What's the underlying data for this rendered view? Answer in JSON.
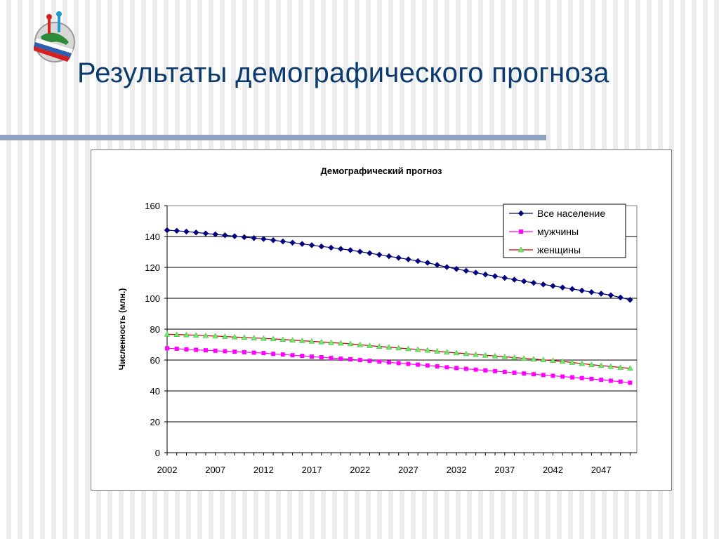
{
  "slide": {
    "title": "Результаты демографического прогноза"
  },
  "logo": {
    "icon": "globe-flag-logo-icon"
  },
  "colors": {
    "title": "#0b3a6e",
    "divider": "#8fa3c0",
    "total": "#00007f",
    "men": "#ff00ff",
    "women_line": "#cc0000",
    "women_marker": "#66ee66"
  },
  "chart_data": {
    "type": "line",
    "title": "Демографический прогноз",
    "xlabel": "",
    "ylabel": "Численность (млн.)",
    "x": [
      2002,
      2003,
      2004,
      2005,
      2006,
      2007,
      2008,
      2009,
      2010,
      2011,
      2012,
      2013,
      2014,
      2015,
      2016,
      2017,
      2018,
      2019,
      2020,
      2021,
      2022,
      2023,
      2024,
      2025,
      2026,
      2027,
      2028,
      2029,
      2030,
      2031,
      2032,
      2033,
      2034,
      2035,
      2036,
      2037,
      2038,
      2039,
      2040,
      2041,
      2042,
      2043,
      2044,
      2045,
      2046,
      2047,
      2048,
      2049,
      2050
    ],
    "xticks": [
      "2002",
      "2007",
      "2012",
      "2017",
      "2022",
      "2027",
      "2032",
      "2037",
      "2042",
      "2047"
    ],
    "yticks": [
      "0",
      "20",
      "40",
      "60",
      "80",
      "100",
      "120",
      "140",
      "160"
    ],
    "ylim": [
      0,
      160
    ],
    "grid": "horizontal",
    "legend_position": "top-right",
    "series": [
      {
        "name": "Все население",
        "marker": "diamond",
        "values": [
          144.1,
          143.7,
          143.2,
          142.6,
          142.0,
          141.4,
          140.8,
          140.2,
          139.6,
          139.0,
          138.4,
          137.6,
          136.8,
          136.0,
          135.2,
          134.4,
          133.6,
          132.8,
          132.0,
          131.2,
          130.2,
          129.2,
          128.2,
          127.2,
          126.2,
          125.2,
          124.1,
          123.0,
          121.6,
          120.2,
          119.0,
          117.8,
          116.6,
          115.4,
          114.3,
          113.2,
          112.1,
          111.0,
          110.0,
          109.0,
          108.0,
          107.0,
          106.0,
          105.0,
          104.0,
          103.0,
          102.0,
          100.5,
          99.0
        ]
      },
      {
        "name": "мужчины",
        "marker": "square",
        "values": [
          67.6,
          67.3,
          66.9,
          66.6,
          66.3,
          66.0,
          65.7,
          65.4,
          65.1,
          64.8,
          64.5,
          64.0,
          63.6,
          63.1,
          62.7,
          62.2,
          61.8,
          61.3,
          60.9,
          60.5,
          60.0,
          59.5,
          59.0,
          58.5,
          58.0,
          57.5,
          57.0,
          56.5,
          55.9,
          55.3,
          54.8,
          54.3,
          53.8,
          53.3,
          52.8,
          52.3,
          51.8,
          51.3,
          50.8,
          50.3,
          49.8,
          49.3,
          48.8,
          48.3,
          47.8,
          47.2,
          46.6,
          46.0,
          45.3
        ]
      },
      {
        "name": "женщины",
        "marker": "triangle",
        "values": [
          76.7,
          76.5,
          76.3,
          76.1,
          75.8,
          75.5,
          75.2,
          74.9,
          74.6,
          74.3,
          74.0,
          73.7,
          73.3,
          72.9,
          72.5,
          72.1,
          71.7,
          71.3,
          70.9,
          70.5,
          69.9,
          69.3,
          68.8,
          68.3,
          67.8,
          67.3,
          66.8,
          66.3,
          65.7,
          65.1,
          64.6,
          64.1,
          63.6,
          63.1,
          62.6,
          62.1,
          61.6,
          61.1,
          60.6,
          60.1,
          59.6,
          59.1,
          58.4,
          57.7,
          57.0,
          56.4,
          55.8,
          55.2,
          54.6
        ]
      }
    ]
  }
}
